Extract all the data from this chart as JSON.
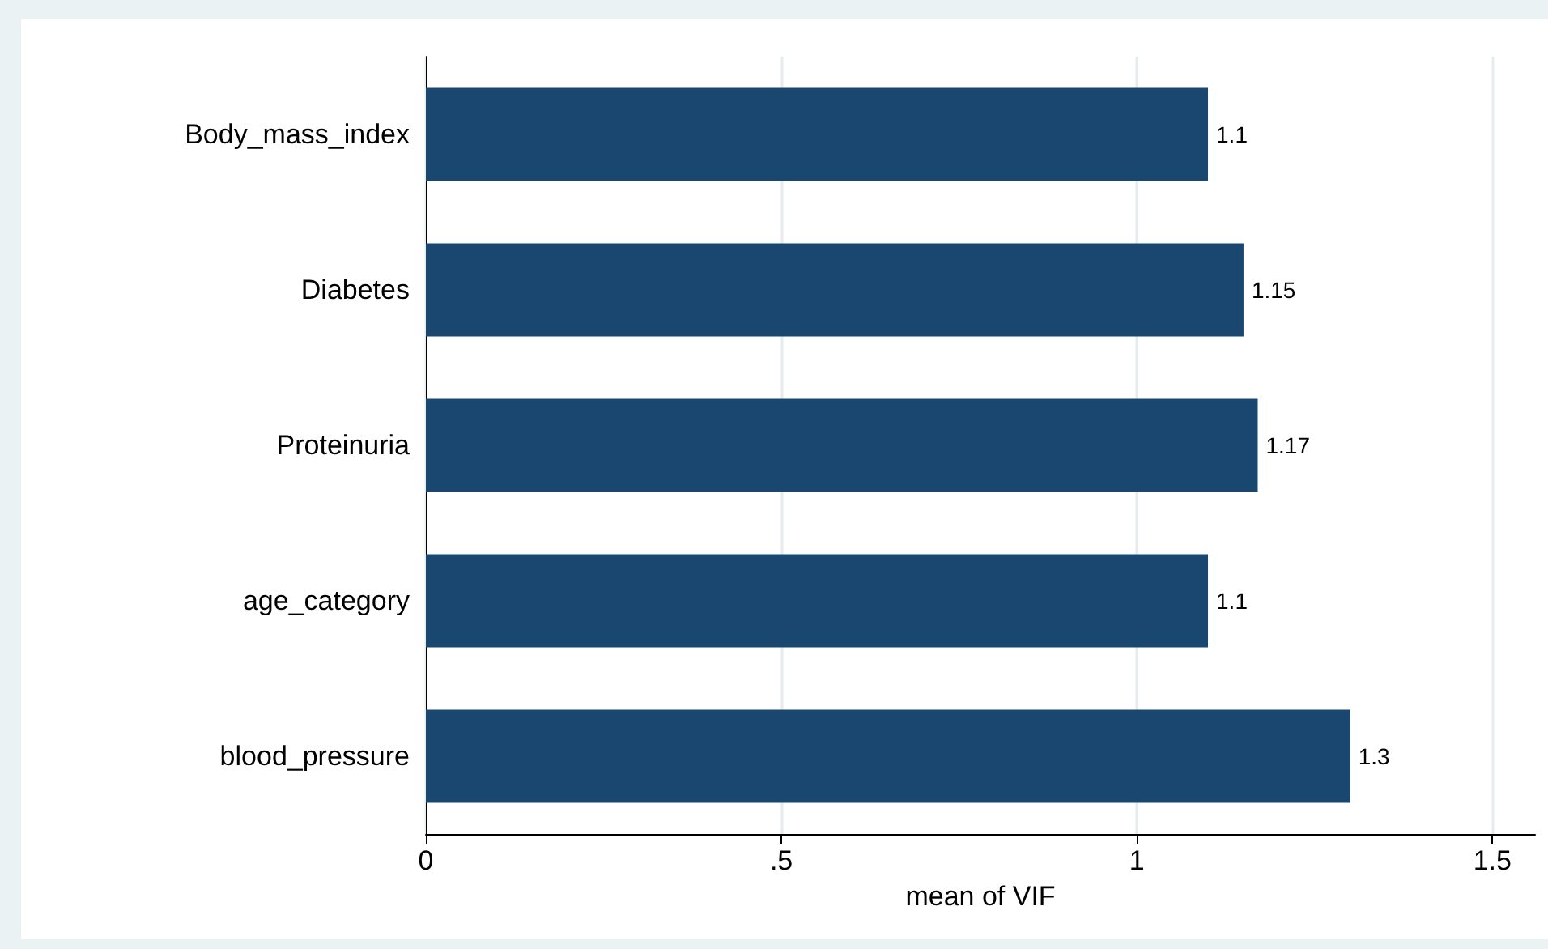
{
  "chart_data": {
    "type": "bar",
    "orientation": "horizontal",
    "categories": [
      "Body_mass_index",
      "Diabetes",
      "Proteinuria",
      "age_category",
      "blood_pressure"
    ],
    "values": [
      1.1,
      1.15,
      1.17,
      1.1,
      1.3
    ],
    "color": "#1a476f",
    "xlabel": "mean of VIF",
    "xlim": [
      0,
      1.56
    ],
    "xticks": [
      0,
      {
        "value": 0.5,
        "label": ".5"
      },
      1,
      1.5
    ],
    "grid": "x",
    "data_labels": true
  }
}
